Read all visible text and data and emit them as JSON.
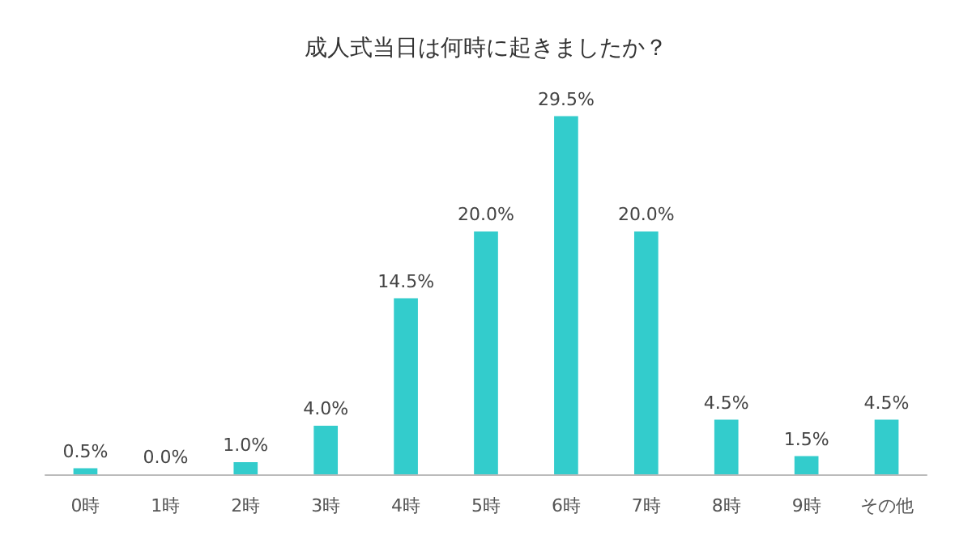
{
  "chart_data": {
    "type": "bar",
    "title": "成人式当日は何時に起きましたか？",
    "categories": [
      "0時",
      "1時",
      "2時",
      "3時",
      "4時",
      "5時",
      "6時",
      "7時",
      "8時",
      "9時",
      "その他"
    ],
    "values": [
      0.5,
      0.0,
      1.0,
      4.0,
      14.5,
      20.0,
      29.5,
      20.0,
      4.5,
      1.5,
      4.5
    ],
    "value_labels": [
      "0.5%",
      "0.0%",
      "1.0%",
      "4.0%",
      "14.5%",
      "20.0%",
      "29.5%",
      "20.0%",
      "4.5%",
      "1.5%",
      "4.5%"
    ],
    "color": "#33cccc"
  }
}
